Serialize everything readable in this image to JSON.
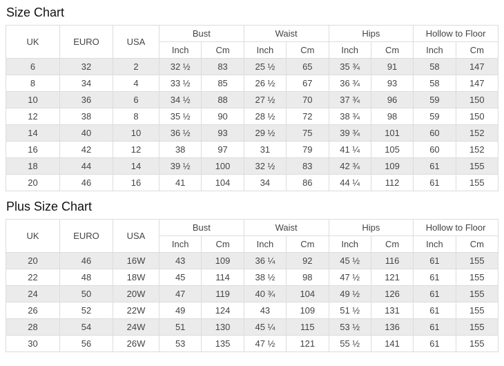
{
  "colors": {
    "stripe_row": "#ebebeb",
    "table_border": "#dcdcdc",
    "cell_text": "#444444",
    "title_text": "#111111",
    "background": "#ffffff"
  },
  "charts": [
    {
      "title": "Size Chart",
      "main_headers": [
        "UK",
        "EURO",
        "USA"
      ],
      "group_headers": [
        "Bust",
        "Waist",
        "Hips",
        "Hollow to Floor"
      ],
      "sub_headers": [
        "Inch",
        "Cm"
      ],
      "rows": [
        [
          "6",
          "32",
          "2",
          "32 ½",
          "83",
          "25 ½",
          "65",
          "35 ¾",
          "91",
          "58",
          "147"
        ],
        [
          "8",
          "34",
          "4",
          "33 ½",
          "85",
          "26 ½",
          "67",
          "36 ¾",
          "93",
          "58",
          "147"
        ],
        [
          "10",
          "36",
          "6",
          "34 ½",
          "88",
          "27 ½",
          "70",
          "37 ¾",
          "96",
          "59",
          "150"
        ],
        [
          "12",
          "38",
          "8",
          "35 ½",
          "90",
          "28 ½",
          "72",
          "38 ¾",
          "98",
          "59",
          "150"
        ],
        [
          "14",
          "40",
          "10",
          "36 ½",
          "93",
          "29 ½",
          "75",
          "39 ¾",
          "101",
          "60",
          "152"
        ],
        [
          "16",
          "42",
          "12",
          "38",
          "97",
          "31",
          "79",
          "41 ¼",
          "105",
          "60",
          "152"
        ],
        [
          "18",
          "44",
          "14",
          "39 ½",
          "100",
          "32 ½",
          "83",
          "42 ¾",
          "109",
          "61",
          "155"
        ],
        [
          "20",
          "46",
          "16",
          "41",
          "104",
          "34",
          "86",
          "44 ¼",
          "112",
          "61",
          "155"
        ]
      ]
    },
    {
      "title": "Plus Size Chart",
      "main_headers": [
        "UK",
        "EURO",
        "USA"
      ],
      "group_headers": [
        "Bust",
        "Waist",
        "Hips",
        "Hollow to Floor"
      ],
      "sub_headers": [
        "Inch",
        "Cm"
      ],
      "rows": [
        [
          "20",
          "46",
          "16W",
          "43",
          "109",
          "36 ¼",
          "92",
          "45 ½",
          "116",
          "61",
          "155"
        ],
        [
          "22",
          "48",
          "18W",
          "45",
          "114",
          "38 ½",
          "98",
          "47 ½",
          "121",
          "61",
          "155"
        ],
        [
          "24",
          "50",
          "20W",
          "47",
          "119",
          "40 ¾",
          "104",
          "49 ½",
          "126",
          "61",
          "155"
        ],
        [
          "26",
          "52",
          "22W",
          "49",
          "124",
          "43",
          "109",
          "51 ½",
          "131",
          "61",
          "155"
        ],
        [
          "28",
          "54",
          "24W",
          "51",
          "130",
          "45 ¼",
          "115",
          "53 ½",
          "136",
          "61",
          "155"
        ],
        [
          "30",
          "56",
          "26W",
          "53",
          "135",
          "47 ½",
          "121",
          "55 ½",
          "141",
          "61",
          "155"
        ]
      ]
    }
  ]
}
